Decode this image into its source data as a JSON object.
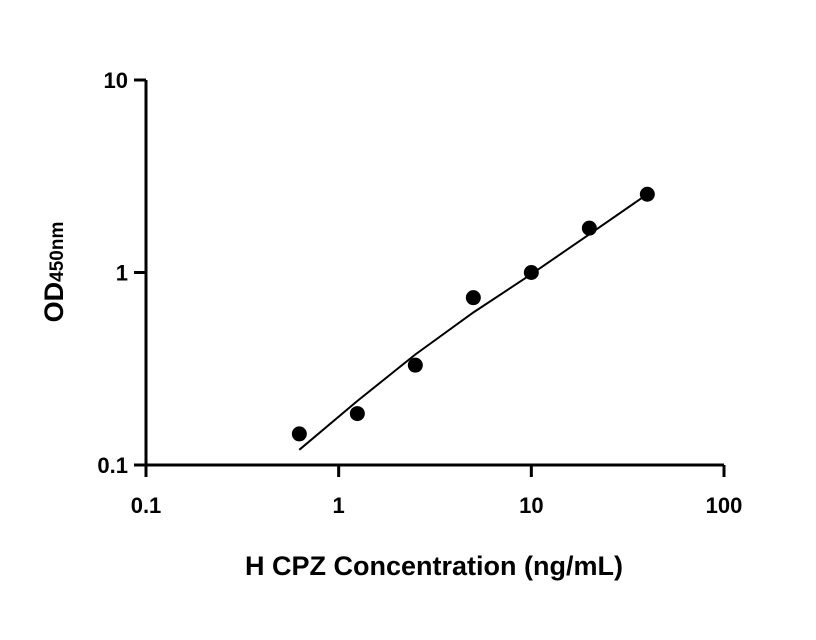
{
  "chart_data": {
    "type": "scatter",
    "xlabel": "H CPZ Concentration (ng/mL)",
    "ylabel": "OD",
    "ylabel_subscript": "450nm",
    "x_scale": "log",
    "y_scale": "log",
    "xlim": [
      0.1,
      100
    ],
    "ylim": [
      0.1,
      10
    ],
    "x_ticks": [
      0.1,
      1,
      10,
      100
    ],
    "x_tick_labels": [
      "0.1",
      "1",
      "10",
      "100"
    ],
    "y_ticks": [
      0.1,
      1,
      10
    ],
    "y_tick_labels": [
      "0.1",
      "1",
      "10"
    ],
    "grid": false,
    "series": [
      {
        "type": "scatter",
        "x": [
          0.625,
          1.25,
          2.5,
          5,
          10,
          20,
          40
        ],
        "y": [
          0.145,
          0.185,
          0.33,
          0.74,
          1.0,
          1.7,
          2.55
        ],
        "color": "#000000"
      },
      {
        "type": "line",
        "x": [
          0.625,
          1.25,
          2.5,
          5,
          10,
          20,
          40
        ],
        "y": [
          0.12,
          0.215,
          0.375,
          0.62,
          0.98,
          1.58,
          2.55
        ],
        "color": "#000000"
      }
    ]
  }
}
